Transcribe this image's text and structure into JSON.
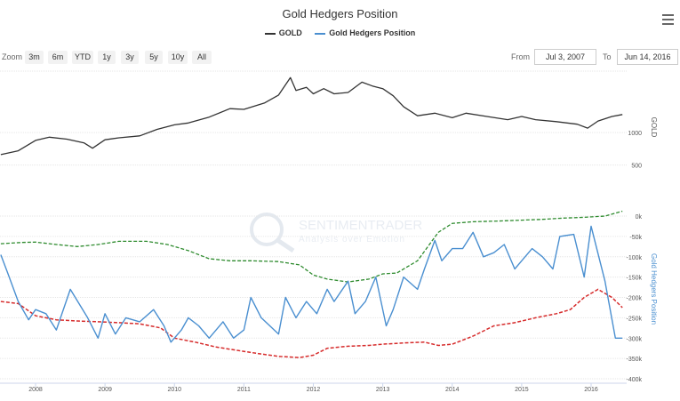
{
  "header": {
    "title": "Gold Hedgers Position",
    "menu_icon": "hamburger-menu-icon"
  },
  "legend": [
    {
      "label": "GOLD",
      "color": "#333333"
    },
    {
      "label": "Gold Hedgers Position",
      "color": "#4a8fd0"
    }
  ],
  "zoom": {
    "label": "Zoom",
    "buttons": [
      "3m",
      "6m",
      "YTD",
      "1y",
      "3y",
      "5y",
      "10y",
      "All"
    ]
  },
  "range": {
    "from_label": "From",
    "from_value": "Jul 3, 2007",
    "to_label": "To",
    "to_value": "Jun 14, 2016"
  },
  "watermark": {
    "line1": "SENTIMENTRADER",
    "line2": "Analysis over Emotion"
  },
  "colors": {
    "gold": "#333333",
    "hedgers": "#4a8fd0",
    "upper_band": "#2e8b2e",
    "lower_band": "#d62b2b"
  },
  "chart_data": [
    {
      "type": "line",
      "name": "GOLD",
      "title": "Gold Hedgers Position",
      "ylabel": "GOLD",
      "ylim": [
        0,
        1950
      ],
      "yticks": [
        500,
        1000
      ],
      "x": [
        2007.5,
        2007.75,
        2008.0,
        2008.2,
        2008.45,
        2008.7,
        2008.82,
        2009.0,
        2009.2,
        2009.5,
        2009.75,
        2010.0,
        2010.2,
        2010.5,
        2010.8,
        2011.0,
        2011.3,
        2011.5,
        2011.67,
        2011.75,
        2011.9,
        2012.0,
        2012.15,
        2012.3,
        2012.5,
        2012.7,
        2012.85,
        2013.0,
        2013.15,
        2013.3,
        2013.5,
        2013.75,
        2014.0,
        2014.2,
        2014.5,
        2014.8,
        2015.0,
        2015.2,
        2015.5,
        2015.8,
        2015.95,
        2016.1,
        2016.3,
        2016.45
      ],
      "values": [
        660,
        720,
        880,
        930,
        900,
        840,
        760,
        890,
        920,
        950,
        1050,
        1120,
        1150,
        1240,
        1370,
        1360,
        1460,
        1580,
        1850,
        1650,
        1700,
        1600,
        1680,
        1600,
        1620,
        1780,
        1720,
        1680,
        1570,
        1400,
        1260,
        1300,
        1230,
        1300,
        1250,
        1200,
        1250,
        1200,
        1170,
        1130,
        1070,
        1180,
        1250,
        1280
      ]
    },
    {
      "type": "line",
      "name": "Gold Hedgers Position",
      "ylabel": "Gold Hedgers Position",
      "ylim": [
        -400000,
        0
      ],
      "yticks": [
        0,
        -50000,
        -100000,
        -150000,
        -200000,
        -250000,
        -300000,
        -350000,
        -400000
      ],
      "ytick_labels": [
        "0k",
        "-50k",
        "-100k",
        "-150k",
        "-200k",
        "-250k",
        "-300k",
        "-350k",
        "-400k"
      ],
      "xticks": [
        2008,
        2009,
        2010,
        2011,
        2012,
        2013,
        2014,
        2015,
        2016
      ],
      "xtick_labels": [
        "2008",
        "2009",
        "2010",
        "2011",
        "2012",
        "2013",
        "2014",
        "2015",
        "2016"
      ],
      "series": [
        {
          "name": "Gold Hedgers Position",
          "style": "solid",
          "x": [
            2007.5,
            2007.6,
            2007.75,
            2007.9,
            2008.0,
            2008.15,
            2008.3,
            2008.5,
            2008.75,
            2008.9,
            2009.0,
            2009.15,
            2009.3,
            2009.5,
            2009.7,
            2009.85,
            2009.95,
            2010.1,
            2010.2,
            2010.35,
            2010.5,
            2010.7,
            2010.85,
            2011.0,
            2011.1,
            2011.25,
            2011.5,
            2011.6,
            2011.75,
            2011.9,
            2012.05,
            2012.2,
            2012.3,
            2012.5,
            2012.6,
            2012.75,
            2012.9,
            2013.05,
            2013.15,
            2013.3,
            2013.5,
            2013.6,
            2013.75,
            2013.85,
            2014.0,
            2014.15,
            2014.3,
            2014.45,
            2014.6,
            2014.75,
            2014.9,
            2015.0,
            2015.15,
            2015.3,
            2015.45,
            2015.55,
            2015.75,
            2015.9,
            2016.0,
            2016.2,
            2016.35,
            2016.45
          ],
          "values": [
            -95000,
            -140000,
            -210000,
            -255000,
            -230000,
            -240000,
            -280000,
            -180000,
            -250000,
            -300000,
            -240000,
            -290000,
            -250000,
            -260000,
            -230000,
            -270000,
            -310000,
            -280000,
            -250000,
            -270000,
            -300000,
            -260000,
            -300000,
            -280000,
            -200000,
            -250000,
            -290000,
            -200000,
            -250000,
            -210000,
            -240000,
            -180000,
            -210000,
            -160000,
            -240000,
            -210000,
            -150000,
            -270000,
            -230000,
            -150000,
            -180000,
            -130000,
            -60000,
            -110000,
            -80000,
            -80000,
            -40000,
            -100000,
            -90000,
            -70000,
            -130000,
            -110000,
            -80000,
            -100000,
            -130000,
            -50000,
            -45000,
            -150000,
            -25000,
            -160000,
            -300000,
            -300000
          ]
        },
        {
          "name": "Upper band",
          "style": "dashed",
          "x": [
            2007.5,
            2007.8,
            2008.0,
            2008.3,
            2008.6,
            2008.9,
            2009.2,
            2009.6,
            2009.9,
            2010.2,
            2010.5,
            2010.8,
            2011.1,
            2011.5,
            2011.8,
            2012.0,
            2012.2,
            2012.5,
            2012.8,
            2013.0,
            2013.2,
            2013.5,
            2013.8,
            2014.0,
            2014.3,
            2014.7,
            2015.0,
            2015.3,
            2015.6,
            2015.9,
            2016.2,
            2016.45
          ],
          "values": [
            -68000,
            -65000,
            -64000,
            -70000,
            -75000,
            -70000,
            -62000,
            -62000,
            -70000,
            -85000,
            -105000,
            -110000,
            -110000,
            -112000,
            -120000,
            -145000,
            -155000,
            -162000,
            -155000,
            -142000,
            -140000,
            -110000,
            -40000,
            -18000,
            -14000,
            -12000,
            -10000,
            -8000,
            -5000,
            -3000,
            0,
            12000
          ]
        },
        {
          "name": "Lower band",
          "style": "dashed",
          "x": [
            2007.5,
            2007.75,
            2008.0,
            2008.3,
            2008.6,
            2008.9,
            2009.2,
            2009.5,
            2009.8,
            2010.0,
            2010.3,
            2010.6,
            2010.9,
            2011.2,
            2011.5,
            2011.8,
            2012.0,
            2012.2,
            2012.5,
            2012.8,
            2013.0,
            2013.3,
            2013.6,
            2013.8,
            2014.0,
            2014.3,
            2014.6,
            2014.9,
            2015.2,
            2015.5,
            2015.7,
            2015.9,
            2016.1,
            2016.3,
            2016.45
          ],
          "values": [
            -210000,
            -215000,
            -245000,
            -255000,
            -258000,
            -260000,
            -262000,
            -265000,
            -275000,
            -300000,
            -310000,
            -322000,
            -330000,
            -338000,
            -345000,
            -348000,
            -342000,
            -325000,
            -320000,
            -318000,
            -315000,
            -312000,
            -310000,
            -318000,
            -315000,
            -295000,
            -270000,
            -262000,
            -250000,
            -240000,
            -230000,
            -200000,
            -180000,
            -200000,
            -225000
          ]
        }
      ]
    }
  ]
}
